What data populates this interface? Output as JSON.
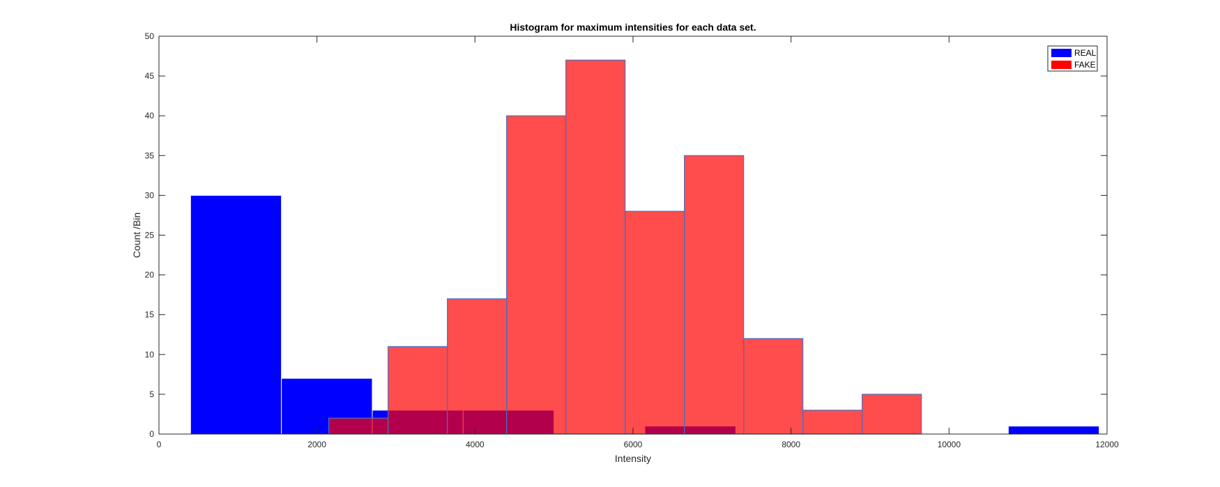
{
  "chart_data": {
    "type": "bar",
    "title": "Histogram for maximum intensities for each data set.",
    "xlabel": "Intensity",
    "ylabel": "Count /Bin",
    "xlim": [
      0,
      12000
    ],
    "ylim": [
      0,
      50
    ],
    "xticks": [
      0,
      2000,
      4000,
      6000,
      8000,
      10000,
      12000
    ],
    "yticks": [
      0,
      5,
      10,
      15,
      20,
      25,
      30,
      35,
      40,
      45,
      50
    ],
    "grid": false,
    "legend_position": "top-right",
    "series": [
      {
        "name": "REAL",
        "color": "#0000ff",
        "bins": [
          {
            "x0": 400,
            "x1": 1550,
            "count": 30
          },
          {
            "x0": 1550,
            "x1": 2700,
            "count": 7
          },
          {
            "x0": 2700,
            "x1": 3850,
            "count": 3
          },
          {
            "x0": 3850,
            "x1": 5000,
            "count": 3
          },
          {
            "x0": 5000,
            "x1": 6150,
            "count": 0
          },
          {
            "x0": 6150,
            "x1": 7300,
            "count": 1
          },
          {
            "x0": 7300,
            "x1": 8450,
            "count": 0
          },
          {
            "x0": 8450,
            "x1": 9600,
            "count": 0
          },
          {
            "x0": 9600,
            "x1": 10750,
            "count": 0
          },
          {
            "x0": 10750,
            "x1": 11900,
            "count": 1
          }
        ]
      },
      {
        "name": "FAKE",
        "color": "#ff0000",
        "bins": [
          {
            "x0": 2150,
            "x1": 2900,
            "count": 2
          },
          {
            "x0": 2900,
            "x1": 3650,
            "count": 11
          },
          {
            "x0": 3650,
            "x1": 4400,
            "count": 17
          },
          {
            "x0": 4400,
            "x1": 5150,
            "count": 40
          },
          {
            "x0": 5150,
            "x1": 5900,
            "count": 47
          },
          {
            "x0": 5900,
            "x1": 6650,
            "count": 28
          },
          {
            "x0": 6650,
            "x1": 7400,
            "count": 35
          },
          {
            "x0": 7400,
            "x1": 8150,
            "count": 12
          },
          {
            "x0": 8150,
            "x1": 8900,
            "count": 3
          },
          {
            "x0": 8900,
            "x1": 9650,
            "count": 5
          }
        ]
      }
    ]
  }
}
